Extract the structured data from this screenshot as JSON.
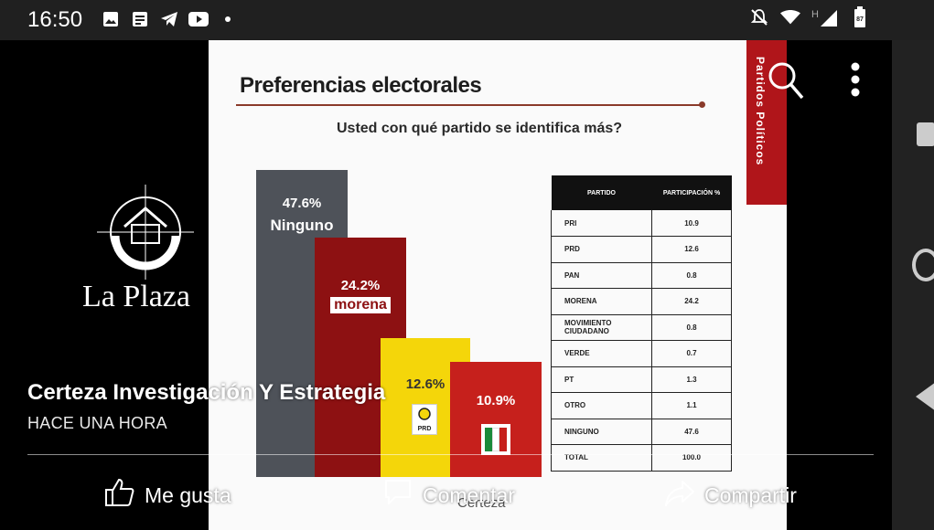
{
  "status_bar": {
    "time": "16:50",
    "battery_level": "87",
    "network_label": "H",
    "left_icons": [
      "image-icon",
      "news-icon",
      "telegram-icon",
      "youtube-icon",
      "dot-icon"
    ],
    "right_icons": [
      "mute-icon",
      "wifi-icon",
      "signal-icon",
      "battery-icon"
    ]
  },
  "overlay": {
    "logo_text": "La Plaza",
    "channel_name": "Certeza Investigación Y Estrategia",
    "time_ago": "HACE UNA HORA",
    "actions": {
      "like": "Me gusta",
      "comment": "Comentar",
      "share": "Compartir"
    }
  },
  "slide": {
    "title": "Preferencias electorales",
    "question": "Usted con qué partido se identifica más?",
    "side_tab": "Partidos Políticos",
    "footer_logo": "Certeza",
    "bars": [
      {
        "pct": "47.6%",
        "name": "Ninguno",
        "value": 47.6,
        "color": "#4e5259"
      },
      {
        "pct": "24.2%",
        "name": "morena",
        "value": 24.2,
        "color": "#8d1112"
      },
      {
        "pct": "12.6%",
        "name": "PRD",
        "value": 12.6,
        "color": "#f4d60a"
      },
      {
        "pct": "10.9%",
        "name": "PRI",
        "value": 10.9,
        "color": "#c6201c"
      }
    ],
    "table": {
      "headers": [
        "PARTIDO",
        "PARTICIPACIÓN %"
      ],
      "rows": [
        {
          "party": "PRI",
          "value": "10.9"
        },
        {
          "party": "PRD",
          "value": "12.6"
        },
        {
          "party": "PAN",
          "value": "0.8"
        },
        {
          "party": "MORENA",
          "value": "24.2"
        },
        {
          "party": "MOVIMIENTO CIUDADANO",
          "value": "0.8"
        },
        {
          "party": "VERDE",
          "value": "0.7"
        },
        {
          "party": "PT",
          "value": "1.3"
        },
        {
          "party": "OTRO",
          "value": "1.1"
        },
        {
          "party": "NINGUNO",
          "value": "47.6"
        },
        {
          "party": "TOTAL",
          "value": "100.0"
        }
      ]
    }
  },
  "colors": {
    "accent_red": "#b0151a",
    "title_rule": "#8a3a2a"
  }
}
